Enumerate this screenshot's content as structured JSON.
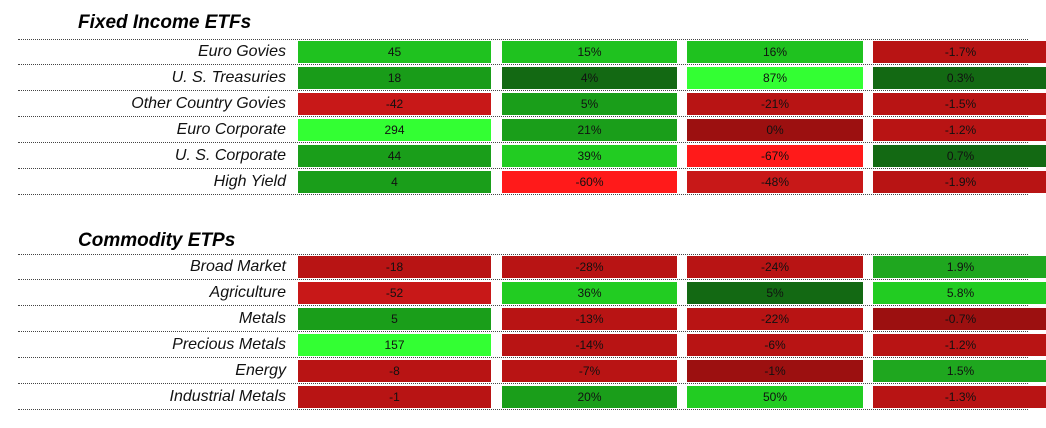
{
  "chart_data": [
    {
      "type": "table",
      "title": "Fixed Income ETFs",
      "rows": [
        {
          "label": "Euro Govies",
          "cells": [
            {
              "v": "45",
              "c": "#1fc21f"
            },
            {
              "v": "15%",
              "c": "#1fc21f"
            },
            {
              "v": "16%",
              "c": "#1fc21f"
            },
            {
              "v": "-1.7%",
              "c": "#b81414"
            }
          ]
        },
        {
          "label": "U. S. Treasuries",
          "cells": [
            {
              "v": "18",
              "c": "#199c19"
            },
            {
              "v": "4%",
              "c": "#136913"
            },
            {
              "v": "87%",
              "c": "#33ff33"
            },
            {
              "v": "0.3%",
              "c": "#136913"
            }
          ]
        },
        {
          "label": "Other Country Govies",
          "cells": [
            {
              "v": "-42",
              "c": "#c81818"
            },
            {
              "v": "5%",
              "c": "#1a9e1a"
            },
            {
              "v": "-21%",
              "c": "#b81414"
            },
            {
              "v": "-1.5%",
              "c": "#b81414"
            }
          ]
        },
        {
          "label": "Euro Corporate",
          "cells": [
            {
              "v": "294",
              "c": "#33ff33"
            },
            {
              "v": "21%",
              "c": "#1a9e1a"
            },
            {
              "v": "0%",
              "c": "#9c1010"
            },
            {
              "v": "-1.2%",
              "c": "#b81414"
            }
          ]
        },
        {
          "label": "U. S. Corporate",
          "cells": [
            {
              "v": "44",
              "c": "#1a9e1a"
            },
            {
              "v": "39%",
              "c": "#22cc22"
            },
            {
              "v": "-67%",
              "c": "#ff1a1a"
            },
            {
              "v": "0.7%",
              "c": "#136913"
            }
          ]
        },
        {
          "label": "High Yield",
          "cells": [
            {
              "v": "4",
              "c": "#1a9e1a"
            },
            {
              "v": "-60%",
              "c": "#ff1a1a"
            },
            {
              "v": "-48%",
              "c": "#c81818"
            },
            {
              "v": "-1.9%",
              "c": "#b81414"
            }
          ]
        }
      ]
    },
    {
      "type": "table",
      "title": "Commodity ETPs",
      "rows": [
        {
          "label": "Broad Market",
          "cells": [
            {
              "v": "-18",
              "c": "#b81414"
            },
            {
              "v": "-28%",
              "c": "#b81414"
            },
            {
              "v": "-24%",
              "c": "#b81414"
            },
            {
              "v": "1.9%",
              "c": "#1fa71f"
            }
          ]
        },
        {
          "label": "Agriculture",
          "cells": [
            {
              "v": "-52",
              "c": "#c81818"
            },
            {
              "v": "36%",
              "c": "#22cc22"
            },
            {
              "v": "5%",
              "c": "#136913"
            },
            {
              "v": "5.8%",
              "c": "#22cc22"
            }
          ]
        },
        {
          "label": "Metals",
          "cells": [
            {
              "v": "5",
              "c": "#1a9e1a"
            },
            {
              "v": "-13%",
              "c": "#b81414"
            },
            {
              "v": "-22%",
              "c": "#b81414"
            },
            {
              "v": "-0.7%",
              "c": "#9c1010"
            }
          ]
        },
        {
          "label": "Precious Metals",
          "cells": [
            {
              "v": "157",
              "c": "#33ff33"
            },
            {
              "v": "-14%",
              "c": "#b81414"
            },
            {
              "v": "-6%",
              "c": "#b81414"
            },
            {
              "v": "-1.2%",
              "c": "#b81414"
            }
          ]
        },
        {
          "label": "Energy",
          "cells": [
            {
              "v": "-8",
              "c": "#b81414"
            },
            {
              "v": "-7%",
              "c": "#b81414"
            },
            {
              "v": "-1%",
              "c": "#9c1010"
            },
            {
              "v": "1.5%",
              "c": "#1fa71f"
            }
          ]
        },
        {
          "label": "Industrial Metals",
          "cells": [
            {
              "v": "-1",
              "c": "#b81414"
            },
            {
              "v": "20%",
              "c": "#1a9e1a"
            },
            {
              "v": "50%",
              "c": "#22cc22"
            },
            {
              "v": "-1.3%",
              "c": "#b81414"
            }
          ]
        }
      ]
    }
  ]
}
